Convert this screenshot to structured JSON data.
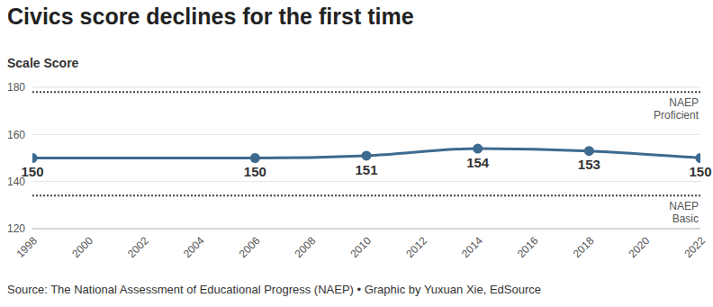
{
  "chart_data": {
    "type": "line",
    "title": "Civics score declines for the first time",
    "y_label": "Scale Score",
    "x": [
      1998,
      2006,
      2010,
      2014,
      2018,
      2022
    ],
    "series": [
      {
        "name": "Civics",
        "color": "#3d6a8f",
        "values": [
          150,
          150,
          151,
          154,
          153,
          150
        ],
        "marker": "circle"
      }
    ],
    "xlim": [
      1998,
      2022
    ],
    "xticks": [
      1998,
      2000,
      2002,
      2004,
      2006,
      2008,
      2010,
      2012,
      2014,
      2016,
      2018,
      2020,
      2022
    ],
    "ylim": [
      120,
      180
    ],
    "yticks": [
      120,
      140,
      160,
      180
    ],
    "grid": true,
    "data_labels": true,
    "reference_lines": [
      {
        "value": 178,
        "label": "NAEP Proficient"
      },
      {
        "value": 134,
        "label": "NAEP Basic"
      }
    ],
    "source": "Source: The National Assessment of Educational Progress (NAEP) • Graphic by Yuxuan Xie, EdSource"
  }
}
